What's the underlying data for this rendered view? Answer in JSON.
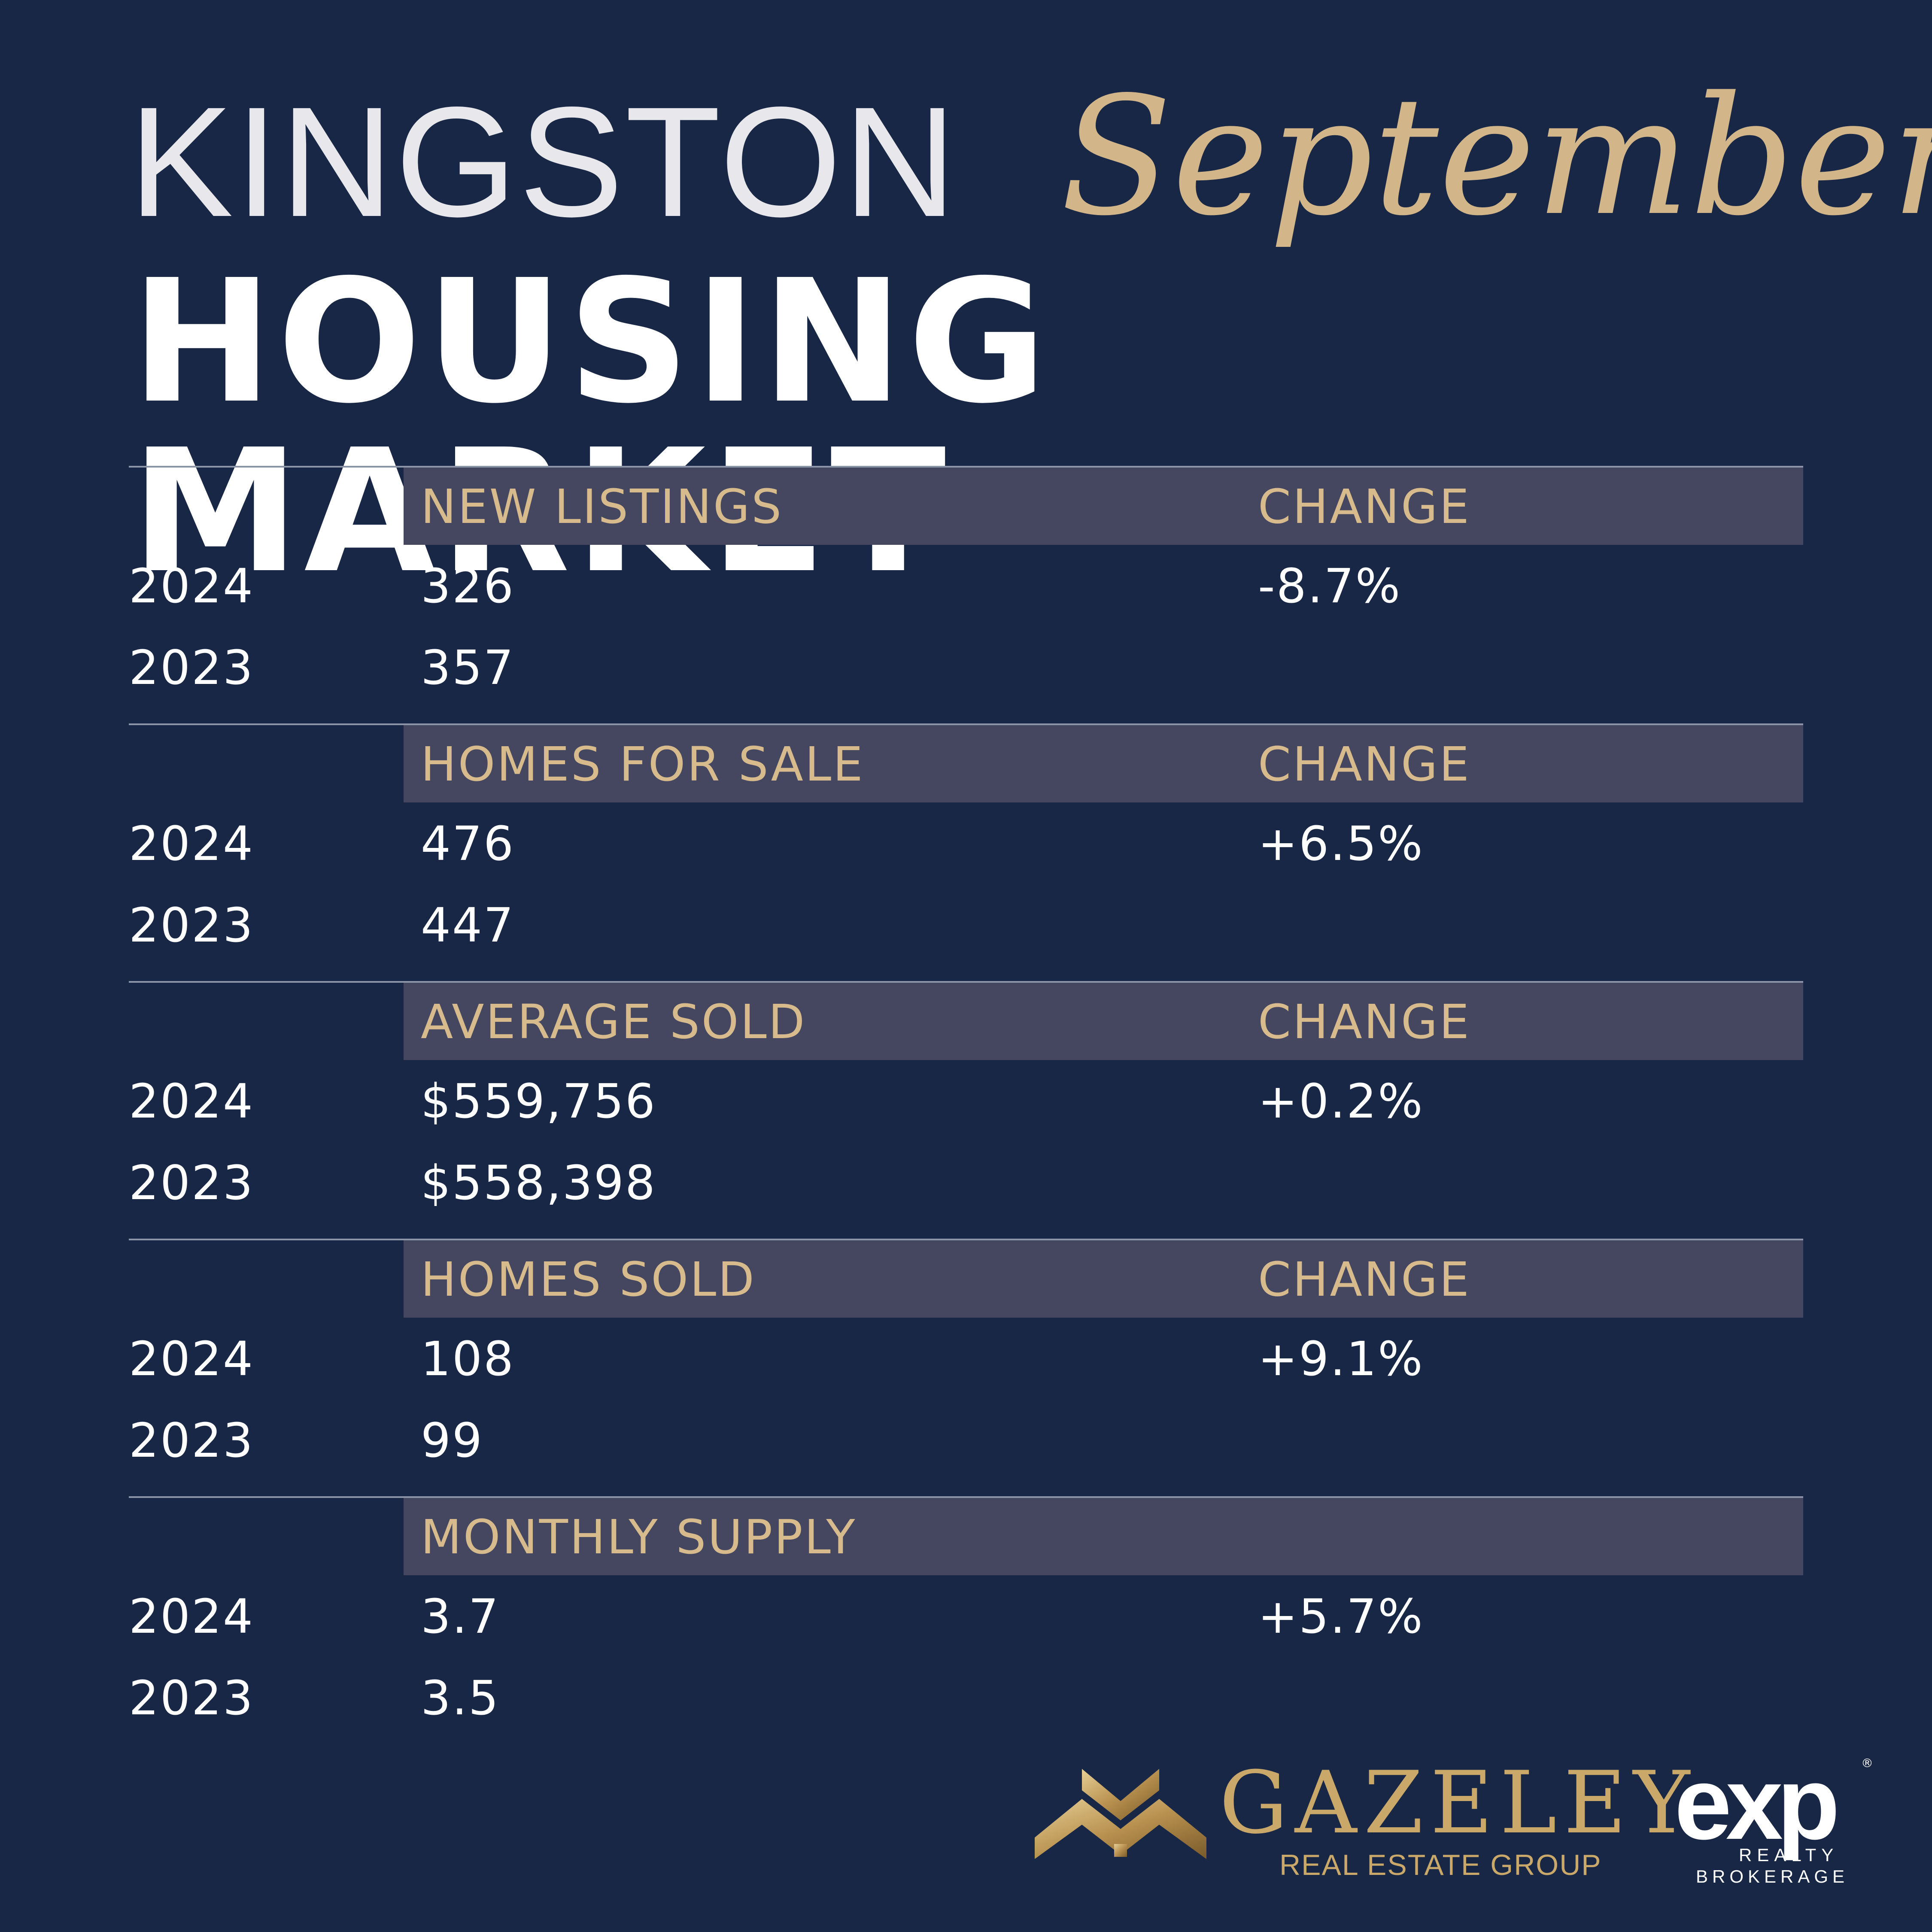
{
  "header": {
    "city": "KINGSTON",
    "month": "September",
    "subtitle": "HOUSING MARKET"
  },
  "colors": {
    "background": "#172745",
    "accent_gold": "#d7bb8d",
    "band": "#44475f",
    "text": "#ffffff"
  },
  "sections": [
    {
      "label": "NEW LISTINGS",
      "change_label": "CHANGE",
      "rows": [
        {
          "year": "2024",
          "value": "326",
          "change": "-8.7%"
        },
        {
          "year": "2023",
          "value": "357",
          "change": ""
        }
      ]
    },
    {
      "label": "HOMES FOR SALE",
      "change_label": "CHANGE",
      "rows": [
        {
          "year": "2024",
          "value": "476",
          "change": "+6.5%"
        },
        {
          "year": "2023",
          "value": "447",
          "change": ""
        }
      ]
    },
    {
      "label": "AVERAGE SOLD",
      "change_label": "CHANGE",
      "rows": [
        {
          "year": "2024",
          "value": "$559,756",
          "change": "+0.2%"
        },
        {
          "year": "2023",
          "value": "$558,398",
          "change": ""
        }
      ]
    },
    {
      "label": "HOMES SOLD",
      "change_label": "CHANGE",
      "rows": [
        {
          "year": "2024",
          "value": "108",
          "change": "+9.1%"
        },
        {
          "year": "2023",
          "value": "99",
          "change": ""
        }
      ]
    },
    {
      "label": "MONTHLY SUPPLY",
      "change_label": "",
      "rows": [
        {
          "year": "2024",
          "value": "3.7",
          "change": "+5.7%"
        },
        {
          "year": "2023",
          "value": "3.5",
          "change": ""
        }
      ]
    }
  ],
  "logos": {
    "gazeley": {
      "name": "GAZELEY",
      "sub": "REAL ESTATE GROUP",
      "icon": "house-roof-icon"
    },
    "exp": {
      "word": "exp",
      "registered": "®",
      "line1": "REALTY",
      "line2": "BROKERAGE"
    }
  }
}
